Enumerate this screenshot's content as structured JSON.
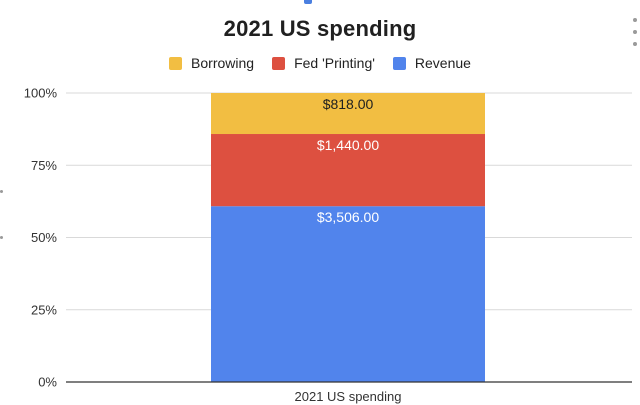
{
  "chart_data": {
    "type": "bar",
    "stacking": "percent",
    "title": "2021 US spending",
    "categories": [
      "2021 US spending"
    ],
    "series": [
      {
        "name": "Revenue",
        "values": [
          3506.0
        ],
        "label": "$3,506.00",
        "color": "#5184ec",
        "label_color": "#ffffff"
      },
      {
        "name": "Fed 'Printing'",
        "values": [
          1440.0
        ],
        "label": "$1,440.00",
        "color": "#dd5040",
        "label_color": "#ffffff"
      },
      {
        "name": "Borrowing",
        "values": [
          818.0
        ],
        "label": "$818.00",
        "color": "#f2be42",
        "label_color": "#202020"
      }
    ],
    "legend_order": [
      "Borrowing",
      "Fed 'Printing'",
      "Revenue"
    ],
    "legend_position": "top",
    "yticks": [
      "0%",
      "25%",
      "50%",
      "75%",
      "100%"
    ],
    "ylim": [
      0,
      100
    ],
    "grid": true,
    "xlabel": "",
    "ylabel": ""
  }
}
